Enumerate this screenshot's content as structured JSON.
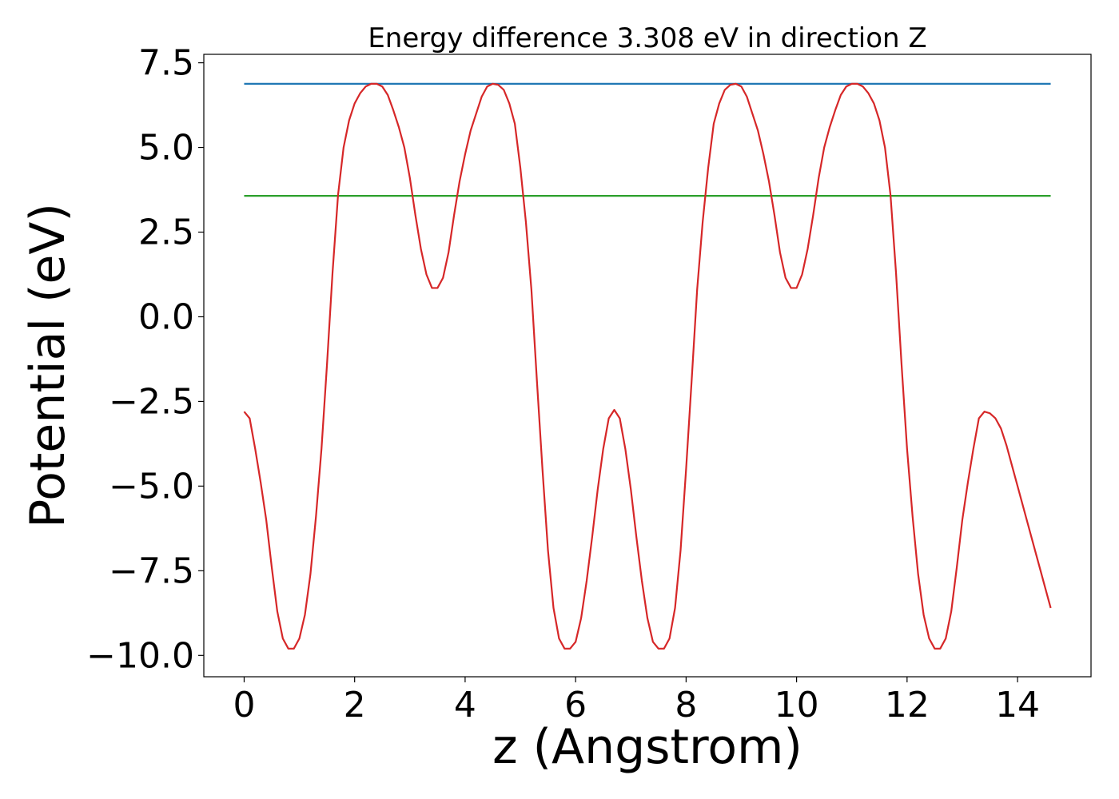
{
  "chart_data": {
    "type": "line",
    "title": "Energy difference 3.308 eV in direction Z",
    "xlabel": "z (Angstrom)",
    "ylabel": "Potential (eV)",
    "xlim": [
      -0.73,
      15.33
    ],
    "ylim": [
      -10.63,
      7.75
    ],
    "x_ticks": [
      0,
      2,
      4,
      6,
      8,
      10,
      12,
      14
    ],
    "x_tick_labels": [
      "0",
      "2",
      "4",
      "6",
      "8",
      "10",
      "12",
      "14"
    ],
    "y_ticks": [
      7.5,
      5.0,
      2.5,
      0.0,
      -2.5,
      -5.0,
      -7.5,
      -10.0
    ],
    "y_tick_labels": [
      "7.5",
      "5.0",
      "2.5",
      "0.0",
      "−2.5",
      "−5.0",
      "−7.5",
      "−10.0"
    ],
    "grid": false,
    "series": [
      {
        "color": "#1f77b4",
        "style": "line",
        "x": [
          0,
          14.6
        ],
        "y": [
          6.88,
          6.88
        ]
      },
      {
        "color": "#2ca02c",
        "style": "line",
        "x": [
          0,
          14.6
        ],
        "y": [
          3.57,
          3.57
        ]
      },
      {
        "color": "#d62728",
        "style": "line",
        "x": [
          0.0,
          0.1,
          0.2,
          0.3,
          0.4,
          0.5,
          0.6,
          0.7,
          0.8,
          0.9,
          1.0,
          1.1,
          1.2,
          1.3,
          1.4,
          1.5,
          1.6,
          1.7,
          1.8,
          1.9,
          2.0,
          2.1,
          2.2,
          2.3,
          2.4,
          2.5,
          2.6,
          2.7,
          2.8,
          2.9,
          3.0,
          3.1,
          3.2,
          3.3,
          3.4,
          3.5,
          3.6,
          3.7,
          3.8,
          3.9,
          4.0,
          4.1,
          4.2,
          4.3,
          4.4,
          4.5,
          4.6,
          4.7,
          4.8,
          4.9,
          5.0,
          5.1,
          5.2,
          5.3,
          5.4,
          5.5,
          5.6,
          5.7,
          5.8,
          5.9,
          6.0,
          6.1,
          6.2,
          6.3,
          6.4,
          6.5,
          6.6,
          6.7,
          6.8,
          6.9,
          7.0,
          7.1,
          7.2,
          7.3,
          7.4,
          7.5,
          7.6,
          7.7,
          7.8,
          7.9,
          8.0,
          8.1,
          8.2,
          8.3,
          8.4,
          8.5,
          8.6,
          8.7,
          8.8,
          8.9,
          9.0,
          9.1,
          9.2,
          9.3,
          9.4,
          9.5,
          9.6,
          9.7,
          9.8,
          9.9,
          10.0,
          10.1,
          10.2,
          10.3,
          10.4,
          10.5,
          10.6,
          10.7,
          10.8,
          10.9,
          11.0,
          11.1,
          11.2,
          11.3,
          11.4,
          11.5,
          11.6,
          11.7,
          11.8,
          11.9,
          12.0,
          12.1,
          12.2,
          12.3,
          12.4,
          12.5,
          12.6,
          12.7,
          12.8,
          12.9,
          13.0,
          13.1,
          13.2,
          13.3,
          13.4,
          13.5,
          13.6,
          13.7,
          13.8,
          13.9,
          14.0,
          14.1,
          14.2,
          14.3,
          14.4,
          14.5,
          14.6
        ],
        "y": [
          -2.8,
          -3.0,
          -3.9,
          -4.9,
          -6.0,
          -7.4,
          -8.7,
          -9.5,
          -9.8,
          -9.8,
          -9.5,
          -8.8,
          -7.6,
          -5.9,
          -3.9,
          -1.4,
          1.3,
          3.6,
          5.0,
          5.8,
          6.3,
          6.6,
          6.8,
          6.88,
          6.88,
          6.8,
          6.55,
          6.1,
          5.6,
          5.0,
          4.1,
          3.0,
          2.0,
          1.25,
          0.85,
          0.85,
          1.15,
          1.9,
          3.0,
          4.0,
          4.8,
          5.5,
          6.0,
          6.5,
          6.8,
          6.88,
          6.85,
          6.7,
          6.3,
          5.7,
          4.4,
          2.8,
          0.8,
          -1.9,
          -4.5,
          -6.9,
          -8.6,
          -9.5,
          -9.8,
          -9.8,
          -9.6,
          -8.9,
          -7.8,
          -6.5,
          -5.1,
          -3.9,
          -3.0,
          -2.75,
          -3.0,
          -3.9,
          -5.1,
          -6.5,
          -7.8,
          -8.9,
          -9.6,
          -9.8,
          -9.8,
          -9.5,
          -8.6,
          -6.9,
          -4.5,
          -1.9,
          0.8,
          2.8,
          4.4,
          5.7,
          6.3,
          6.7,
          6.85,
          6.88,
          6.8,
          6.5,
          6.0,
          5.5,
          4.8,
          4.0,
          3.0,
          1.9,
          1.15,
          0.85,
          0.85,
          1.25,
          2.0,
          3.0,
          4.1,
          5.0,
          5.6,
          6.1,
          6.55,
          6.8,
          6.88,
          6.88,
          6.8,
          6.6,
          6.3,
          5.8,
          5.0,
          3.6,
          1.3,
          -1.4,
          -3.9,
          -5.9,
          -7.6,
          -8.8,
          -9.5,
          -9.8,
          -9.8,
          -9.5,
          -8.7,
          -7.4,
          -6.0,
          -4.9,
          -3.9,
          -3.0,
          -2.8,
          -2.85,
          -3.0,
          -3.3,
          -3.8,
          -4.4,
          -5.0,
          -5.6,
          -6.2,
          -6.8,
          -7.4,
          -8.0,
          -8.6
        ]
      }
    ]
  }
}
